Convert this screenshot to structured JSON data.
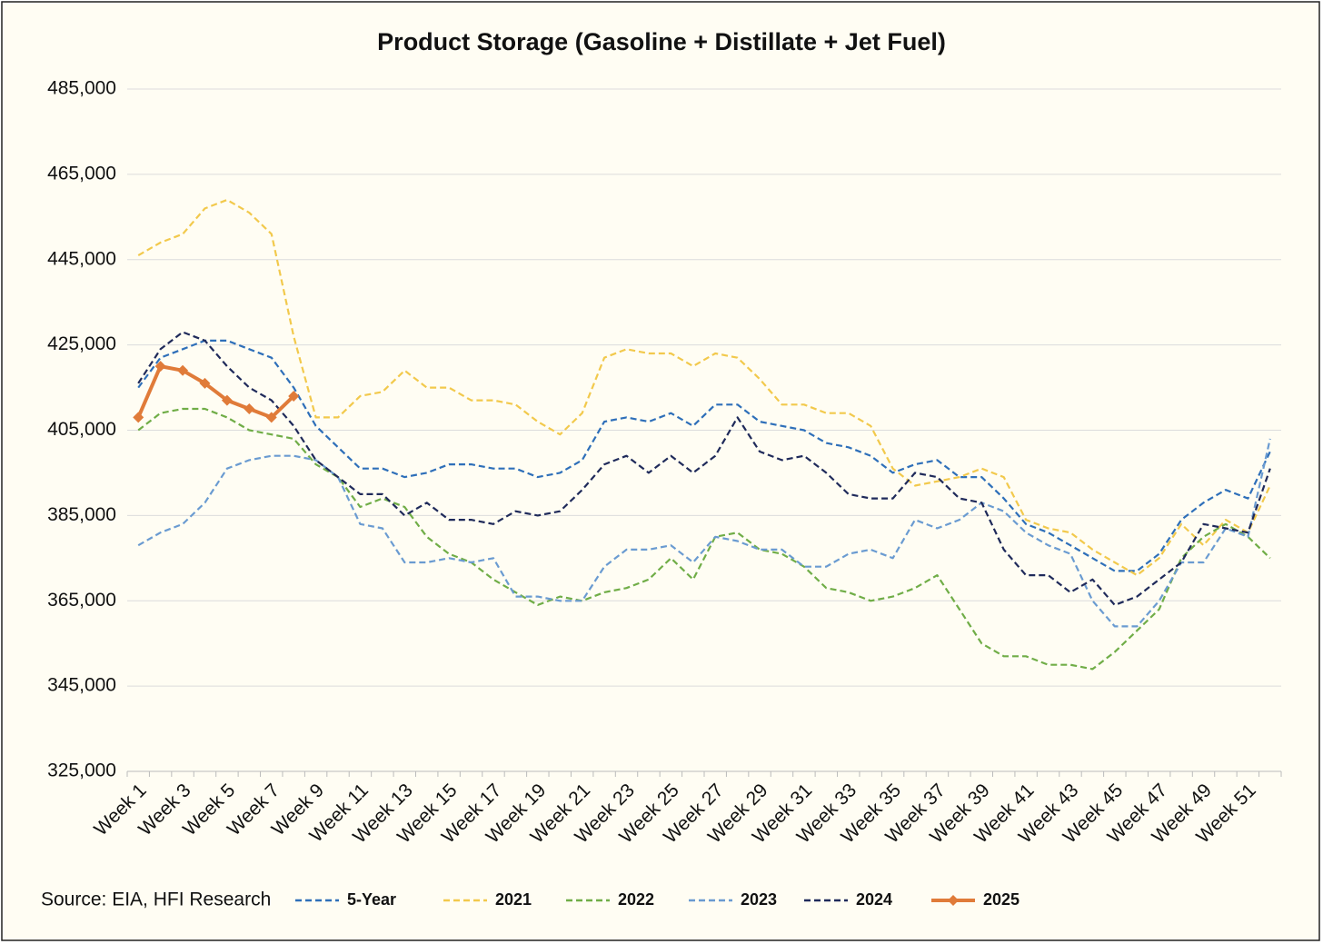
{
  "chart_data": {
    "type": "line",
    "title": "Product Storage (Gasoline + Distillate + Jet Fuel)",
    "source": "Source: EIA, HFI Research",
    "categories": [
      "Week 1",
      null,
      "Week 3",
      null,
      "Week 5",
      null,
      "Week 7",
      null,
      "Week 9",
      null,
      "Week 11",
      null,
      "Week 13",
      null,
      "Week 15",
      null,
      "Week 17",
      null,
      "Week 19",
      null,
      "Week 21",
      null,
      "Week 23",
      null,
      "Week 25",
      null,
      "Week 27",
      null,
      "Week 29",
      null,
      "Week 31",
      null,
      "Week 33",
      null,
      "Week 35",
      null,
      "Week 37",
      null,
      "Week 39",
      null,
      "Week 41",
      null,
      "Week 43",
      null,
      "Week 45",
      null,
      "Week 47",
      null,
      "Week 49",
      null,
      "Week 51",
      null
    ],
    "ylim": [
      325000,
      485000
    ],
    "yticks": [
      {
        "value": 325000,
        "label": "325,000"
      },
      {
        "value": 345000,
        "label": "345,000"
      },
      {
        "value": 365000,
        "label": "365,000"
      },
      {
        "value": 385000,
        "label": "385,000"
      },
      {
        "value": 405000,
        "label": "405,000"
      },
      {
        "value": 425000,
        "label": "425,000"
      },
      {
        "value": 445000,
        "label": "445,000"
      },
      {
        "value": 465000,
        "label": "465,000"
      },
      {
        "value": 485000,
        "label": "485,000"
      }
    ],
    "grid": true,
    "series": [
      {
        "name": "5-Year",
        "color": "#2e6fb9",
        "dashed": true,
        "values": [
          415000,
          422000,
          424000,
          426000,
          426000,
          424000,
          422000,
          415000,
          406000,
          401000,
          396000,
          396000,
          394000,
          395000,
          397000,
          397000,
          396000,
          396000,
          394000,
          395000,
          398000,
          407000,
          408000,
          407000,
          409000,
          406000,
          411000,
          411000,
          407000,
          406000,
          405000,
          402000,
          401000,
          399000,
          395000,
          397000,
          398000,
          394000,
          394000,
          389000,
          383000,
          381000,
          378000,
          375000,
          372000,
          372000,
          376000,
          384000,
          388000,
          391000,
          389000,
          400000
        ]
      },
      {
        "name": "2021",
        "color": "#f2c94c",
        "dashed": true,
        "values": [
          446000,
          449000,
          451000,
          457000,
          459000,
          456000,
          451000,
          427000,
          408000,
          408000,
          413000,
          414000,
          419000,
          415000,
          415000,
          412000,
          412000,
          411000,
          407000,
          404000,
          409000,
          422000,
          424000,
          423000,
          423000,
          420000,
          423000,
          422000,
          417000,
          411000,
          411000,
          409000,
          409000,
          406000,
          396000,
          392000,
          393000,
          394000,
          396000,
          394000,
          384000,
          382000,
          381000,
          377000,
          374000,
          371000,
          375000,
          383000,
          378000,
          384000,
          381000,
          392000
        ]
      },
      {
        "name": "2022",
        "color": "#70ad47",
        "dashed": true,
        "values": [
          405000,
          409000,
          410000,
          410000,
          408000,
          405000,
          404000,
          403000,
          397000,
          394000,
          387000,
          389000,
          387000,
          380000,
          376000,
          374000,
          370000,
          367000,
          364000,
          366000,
          365000,
          367000,
          368000,
          370000,
          375000,
          370000,
          380000,
          381000,
          377000,
          376000,
          373000,
          368000,
          367000,
          365000,
          366000,
          368000,
          371000,
          363000,
          355000,
          352000,
          352000,
          350000,
          350000,
          349000,
          353000,
          358000,
          363000,
          375000,
          380000,
          383000,
          380000,
          375000
        ]
      },
      {
        "name": "2023",
        "color": "#6a9bd1",
        "dashed": true,
        "values": [
          378000,
          381000,
          383000,
          388000,
          396000,
          398000,
          399000,
          399000,
          398000,
          394000,
          383000,
          382000,
          374000,
          374000,
          375000,
          374000,
          375000,
          366000,
          366000,
          365000,
          365000,
          373000,
          377000,
          377000,
          378000,
          374000,
          380000,
          379000,
          377000,
          377000,
          373000,
          373000,
          376000,
          377000,
          375000,
          384000,
          382000,
          384000,
          388000,
          386000,
          381000,
          378000,
          376000,
          365000,
          359000,
          359000,
          365000,
          374000,
          374000,
          382000,
          380000,
          403000
        ]
      },
      {
        "name": "2024",
        "color": "#1f2a5a",
        "dashed": true,
        "values": [
          416000,
          424000,
          428000,
          426000,
          420000,
          415000,
          412000,
          406000,
          398000,
          394000,
          390000,
          390000,
          385000,
          388000,
          384000,
          384000,
          383000,
          386000,
          385000,
          386000,
          391000,
          397000,
          399000,
          395000,
          399000,
          395000,
          399000,
          408000,
          400000,
          398000,
          399000,
          395000,
          390000,
          389000,
          389000,
          395000,
          394000,
          389000,
          388000,
          377000,
          371000,
          371000,
          367000,
          370000,
          364000,
          366000,
          370000,
          374000,
          383000,
          382000,
          381000,
          396000
        ]
      },
      {
        "name": "2025",
        "color": "#e07b39",
        "dashed": false,
        "marker": "diamond",
        "values": [
          408000,
          420000,
          419000,
          416000,
          412000,
          410000,
          408000,
          413000,
          null,
          null,
          null,
          null,
          null,
          null,
          null,
          null,
          null,
          null,
          null,
          null,
          null,
          null,
          null,
          null,
          null,
          null,
          null,
          null,
          null,
          null,
          null,
          null,
          null,
          null,
          null,
          null,
          null,
          null,
          null,
          null,
          null,
          null,
          null,
          null,
          null,
          null,
          null,
          null,
          null,
          null,
          null,
          null
        ]
      }
    ]
  }
}
